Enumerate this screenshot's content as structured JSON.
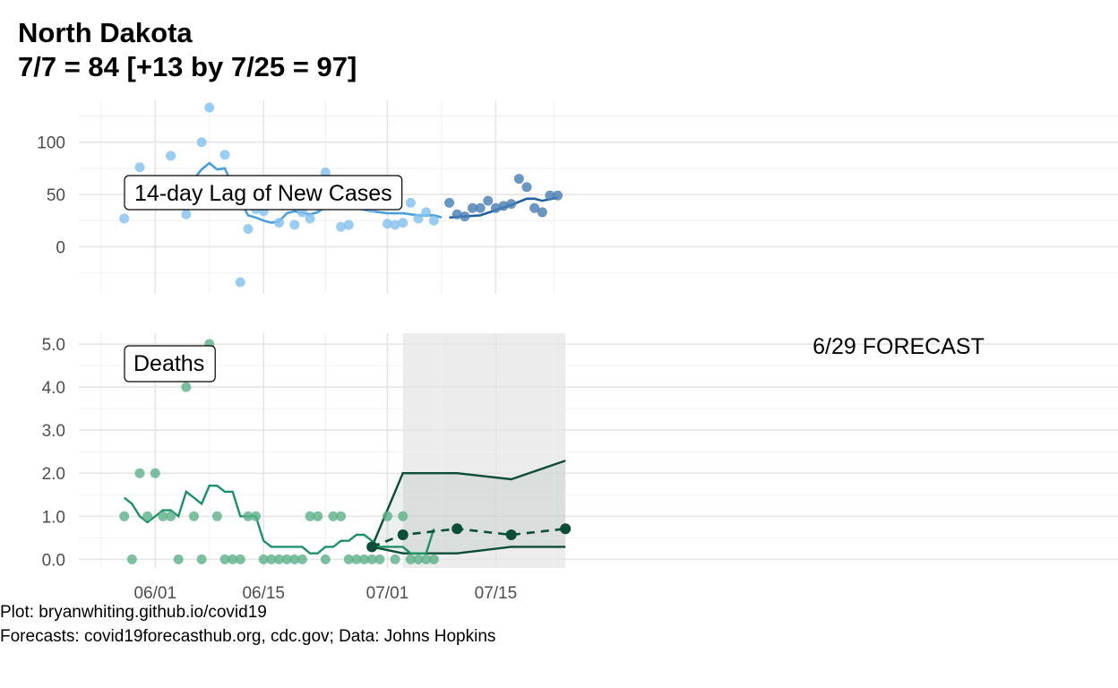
{
  "header": {
    "title_line1": "North Dakota",
    "title_line2": "7/7 = 84 [+13 by 7/25 = 97]"
  },
  "caption": {
    "line1": "Plot: bryanwhiting.github.io/covid19",
    "line2": "Forecasts: covid19forecasthub.org, cdc.gov; Data: Johns Hopkins"
  },
  "colors": {
    "cases_point": "#85C1EE",
    "cases_line": "#4A9FDB",
    "cases_future_point": "#4A7FB5",
    "cases_future_line": "#1F5FA0",
    "deaths_point": "#5DB08A",
    "deaths_line": "#1E9068",
    "forecast": "#0B4D35",
    "forecast_band": "#ECECEC"
  },
  "chart_data": [
    {
      "type": "scatter",
      "panel_label": "14-day Lag of New Cases",
      "x_type": "date",
      "xlim": [
        "2020-05-27",
        "2020-07-26"
      ],
      "ylim": [
        -45,
        140
      ],
      "yticks": [
        0,
        50,
        100
      ],
      "xticks": [
        {
          "date": "2020-06-01",
          "label": "06/01"
        },
        {
          "date": "2020-06-15",
          "label": "06/15"
        },
        {
          "date": "2020-07-01",
          "label": "07/01"
        },
        {
          "date": "2020-07-15",
          "label": "07/15"
        }
      ],
      "grid": true,
      "series": [
        {
          "kind": "points",
          "x": [
            "2020-05-28",
            "2020-05-30",
            "2020-06-03",
            "2020-06-05",
            "2020-06-07",
            "2020-06-08",
            "2020-06-10",
            "2020-06-11",
            "2020-06-12",
            "2020-06-13",
            "2020-06-14",
            "2020-06-15",
            "2020-06-17",
            "2020-06-18",
            "2020-06-19",
            "2020-06-20",
            "2020-06-21",
            "2020-06-22",
            "2020-06-23",
            "2020-06-24",
            "2020-06-25",
            "2020-06-26",
            "2020-06-27",
            "2020-06-28",
            "2020-06-29",
            "2020-06-30",
            "2020-07-01",
            "2020-07-02",
            "2020-07-03",
            "2020-07-04",
            "2020-07-05",
            "2020-07-06",
            "2020-07-07"
          ],
          "y": [
            27,
            76,
            87,
            31,
            100,
            133,
            88,
            40,
            -34,
            17,
            36,
            34,
            23,
            48,
            21,
            33,
            27,
            39,
            71,
            45,
            19,
            21,
            40,
            40,
            37,
            42,
            22,
            21,
            23,
            42,
            27,
            33,
            25
          ],
          "extra_x": [
            "2020-07-06",
            "2020-07-07"
          ],
          "extra_y": [
            37,
            25
          ]
        },
        {
          "kind": "line",
          "x": [
            "2020-05-28",
            "2020-06-03",
            "2020-06-05",
            "2020-06-07",
            "2020-06-08",
            "2020-06-09",
            "2020-06-10",
            "2020-06-11",
            "2020-06-13",
            "2020-06-14",
            "2020-06-15",
            "2020-06-16",
            "2020-06-17",
            "2020-06-18",
            "2020-06-19",
            "2020-06-21",
            "2020-06-22",
            "2020-06-23",
            "2020-06-24",
            "2020-06-25",
            "2020-06-27",
            "2020-06-29",
            "2020-07-01",
            "2020-07-03",
            "2020-07-05",
            "2020-07-07",
            "2020-07-08"
          ],
          "y": [
            45,
            47,
            55,
            74,
            80,
            74,
            75,
            58,
            30,
            28,
            25,
            23,
            24,
            32,
            34,
            31,
            33,
            38,
            40,
            37,
            37,
            34,
            32,
            32,
            30,
            30,
            28
          ]
        },
        {
          "kind": "future_points",
          "x": [
            "2020-07-09",
            "2020-07-10",
            "2020-07-11",
            "2020-07-12",
            "2020-07-13",
            "2020-07-14",
            "2020-07-15",
            "2020-07-16",
            "2020-07-17",
            "2020-07-18",
            "2020-07-19",
            "2020-07-20",
            "2020-07-21",
            "2020-07-22",
            "2020-07-23"
          ],
          "y": [
            42,
            31,
            29,
            37,
            37,
            44,
            37,
            39,
            41,
            65,
            57,
            37,
            33,
            49,
            49
          ]
        },
        {
          "kind": "future_line",
          "x": [
            "2020-07-09",
            "2020-07-11",
            "2020-07-13",
            "2020-07-15",
            "2020-07-17",
            "2020-07-19",
            "2020-07-20",
            "2020-07-21",
            "2020-07-23"
          ],
          "y": [
            28,
            29,
            30,
            35,
            40,
            46,
            46,
            44,
            47
          ]
        }
      ]
    },
    {
      "type": "scatter",
      "panel_label": "Deaths",
      "x_type": "date",
      "xlim": [
        "2020-05-27",
        "2020-07-26"
      ],
      "ylim": [
        -0.2,
        5.25
      ],
      "yticks": [
        0,
        1,
        2,
        3,
        4,
        5
      ],
      "ytick_labels": [
        "0.0",
        "1.0",
        "2.0",
        "3.0",
        "4.0",
        "5.0"
      ],
      "grid": true,
      "forecast_label": "6/29 FORECAST",
      "forecast_window": [
        "2020-07-03",
        "2020-07-24"
      ],
      "series": [
        {
          "kind": "points",
          "x": [
            "2020-05-28",
            "2020-05-29",
            "2020-05-30",
            "2020-05-31",
            "2020-06-01",
            "2020-06-02",
            "2020-06-03",
            "2020-06-04",
            "2020-06-05",
            "2020-06-06",
            "2020-06-07",
            "2020-06-08",
            "2020-06-09",
            "2020-06-10",
            "2020-06-11",
            "2020-06-12",
            "2020-06-13",
            "2020-06-14",
            "2020-06-15",
            "2020-06-16",
            "2020-06-17",
            "2020-06-18",
            "2020-06-19",
            "2020-06-20",
            "2020-06-21",
            "2020-06-22",
            "2020-06-23",
            "2020-06-24",
            "2020-06-25",
            "2020-06-26",
            "2020-06-27",
            "2020-06-28",
            "2020-06-29",
            "2020-06-30",
            "2020-07-01",
            "2020-07-02",
            "2020-07-03",
            "2020-07-04",
            "2020-07-05",
            "2020-07-06",
            "2020-07-07"
          ],
          "y": [
            1,
            0,
            2,
            1,
            2,
            1,
            1,
            0,
            4,
            1,
            0,
            5,
            1,
            0,
            0,
            0,
            1,
            1,
            0,
            0,
            0,
            0,
            0,
            0,
            1,
            1,
            0,
            1,
            1,
            0,
            0,
            0,
            0,
            0,
            1,
            0,
            1,
            0,
            0,
            0,
            0
          ],
          "extra_x": [
            "2020-05-31",
            "2020-06-06",
            "2020-06-08",
            "2020-06-13",
            "2020-06-16",
            "2020-06-19",
            "2020-06-25",
            "2020-06-28",
            "2020-06-30",
            "2020-07-04",
            "2020-07-05",
            "2020-07-06",
            "2020-07-07"
          ],
          "extra_y": [
            1,
            0,
            0,
            0,
            0,
            0,
            0,
            0,
            0,
            0,
            0,
            0,
            4
          ]
        },
        {
          "kind": "line",
          "x": [
            "2020-05-28",
            "2020-05-29",
            "2020-05-30",
            "2020-05-31",
            "2020-06-01",
            "2020-06-02",
            "2020-06-03",
            "2020-06-04",
            "2020-06-05",
            "2020-06-06",
            "2020-06-07",
            "2020-06-08",
            "2020-06-09",
            "2020-06-10",
            "2020-06-11",
            "2020-06-12",
            "2020-06-13",
            "2020-06-14",
            "2020-06-15",
            "2020-06-16",
            "2020-06-17",
            "2020-06-18",
            "2020-06-19",
            "2020-06-20",
            "2020-06-21",
            "2020-06-22",
            "2020-06-23",
            "2020-06-24",
            "2020-06-25",
            "2020-06-26",
            "2020-06-27",
            "2020-06-28",
            "2020-06-29",
            "2020-06-30",
            "2020-07-01",
            "2020-07-02",
            "2020-07-03",
            "2020-07-04",
            "2020-07-05",
            "2020-07-06",
            "2020-07-07"
          ],
          "y": [
            1.43,
            1.29,
            1.0,
            0.86,
            1.0,
            1.14,
            1.14,
            1.0,
            1.57,
            1.43,
            1.29,
            1.71,
            1.71,
            1.57,
            1.57,
            1.0,
            1.0,
            1.0,
            0.43,
            0.29,
            0.29,
            0.29,
            0.29,
            0.29,
            0.14,
            0.14,
            0.29,
            0.29,
            0.43,
            0.43,
            0.57,
            0.57,
            0.43,
            0.29,
            0.29,
            0.29,
            0.29,
            0.14,
            0.14,
            0.14,
            0.71
          ]
        },
        {
          "kind": "forecast_band",
          "x": [
            "2020-06-29",
            "2020-07-03",
            "2020-07-10",
            "2020-07-17",
            "2020-07-24"
          ],
          "lower": [
            0.29,
            0.14,
            0.14,
            0.29,
            0.29
          ],
          "upper": [
            0.29,
            2.0,
            2.0,
            1.86,
            2.29
          ]
        },
        {
          "kind": "forecast_mean",
          "x": [
            "2020-06-29",
            "2020-07-03",
            "2020-07-10",
            "2020-07-17",
            "2020-07-24"
          ],
          "y": [
            0.29,
            0.57,
            0.71,
            0.57,
            0.71
          ]
        }
      ]
    }
  ]
}
